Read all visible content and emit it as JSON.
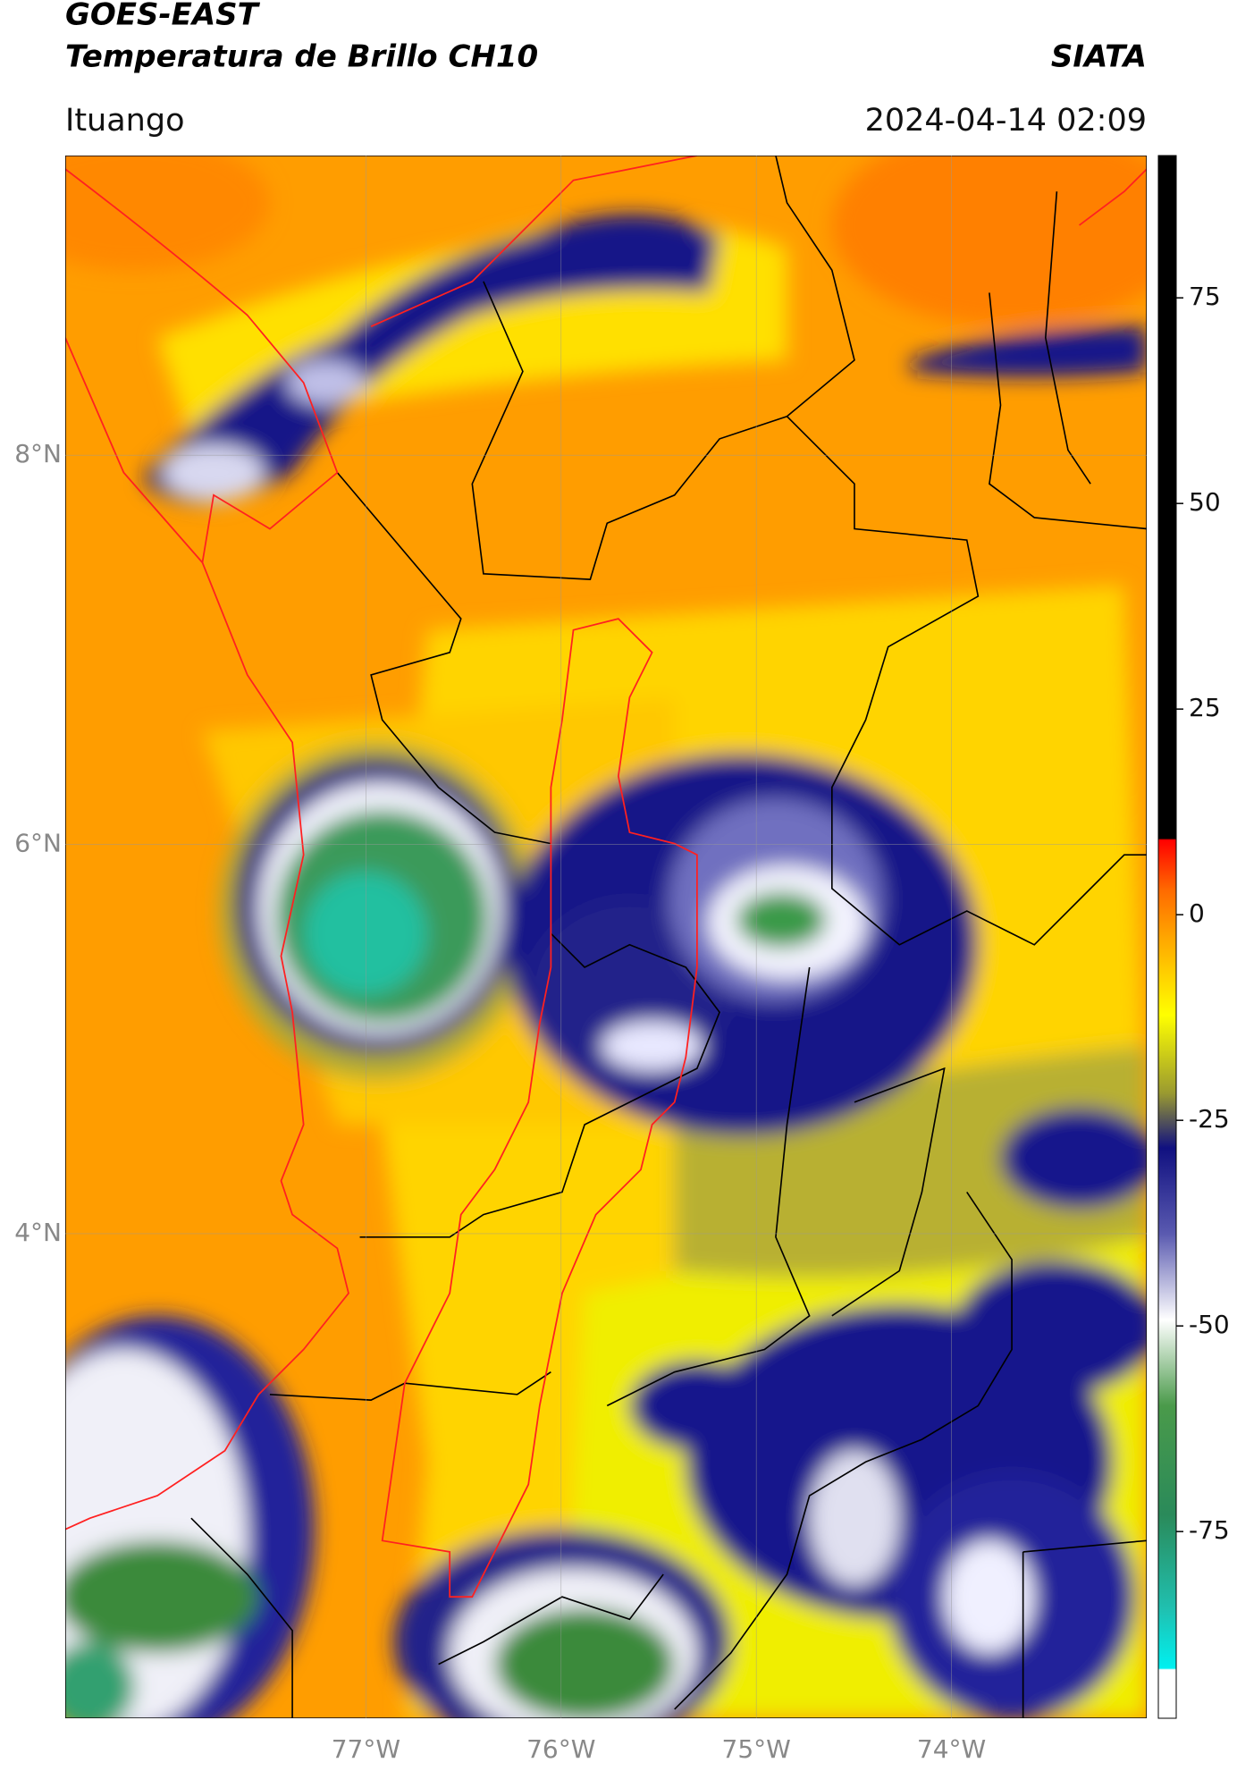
{
  "header": {
    "satellite": "GOES-EAST",
    "product": "Temperatura de Brillo CH10",
    "organization": "SIATA",
    "location": "Ituango",
    "datetime": "2024-04-14 02:09"
  },
  "map": {
    "lonlim": [
      -78.54,
      -73.0
    ],
    "latlim": [
      1.51,
      9.54
    ],
    "grid": true,
    "lat_ticks": [
      {
        "value": 8,
        "label": "8°N"
      },
      {
        "value": 6,
        "label": "6°N"
      },
      {
        "value": 4,
        "label": "4°N"
      }
    ],
    "lon_ticks": [
      {
        "value": -77,
        "label": "77°W"
      },
      {
        "value": -76,
        "label": "76°W"
      },
      {
        "value": -75,
        "label": "75°W"
      },
      {
        "value": -74,
        "label": "74°W"
      }
    ]
  },
  "colorbar": {
    "lim": [
      -97.7,
      92.3
    ],
    "ticks": [
      75,
      50,
      25,
      0,
      -25,
      -50,
      -75
    ]
  }
}
